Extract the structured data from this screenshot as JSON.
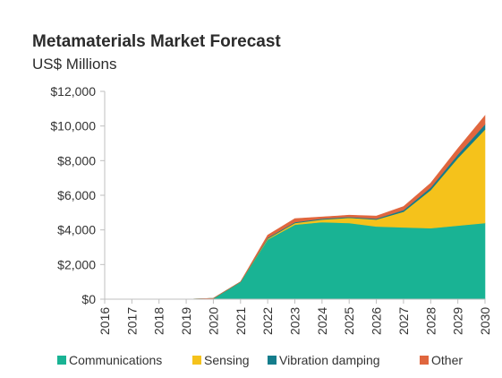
{
  "chart_data": {
    "type": "area",
    "stacked": true,
    "title": "Metamaterials Market Forecast",
    "subtitle": "US$ Millions",
    "xlabel": "",
    "ylabel": "",
    "x": [
      "2016",
      "2017",
      "2018",
      "2019",
      "2020",
      "2021",
      "2022",
      "2023",
      "2024",
      "2025",
      "2026",
      "2027",
      "2028",
      "2029",
      "2030"
    ],
    "ylim": [
      0,
      12000
    ],
    "yticks": [
      "$0",
      "$2,000",
      "$4,000",
      "$6,000",
      "$8,000",
      "$10,000",
      "$12,000"
    ],
    "grid": false,
    "legend_position": "bottom",
    "series": [
      {
        "name": "Communications",
        "color": "#19b394",
        "values": [
          0,
          0,
          0,
          0,
          50,
          1000,
          3450,
          4300,
          4450,
          4400,
          4200,
          4150,
          4100,
          4250,
          4400
        ]
      },
      {
        "name": "Sensing",
        "color": "#f5c21b",
        "values": [
          0,
          0,
          0,
          0,
          0,
          0,
          50,
          100,
          150,
          300,
          400,
          900,
          2200,
          3900,
          5400
        ]
      },
      {
        "name": "Vibration damping",
        "color": "#147d8c",
        "values": [
          0,
          0,
          0,
          0,
          0,
          0,
          50,
          50,
          50,
          50,
          50,
          100,
          150,
          200,
          300
        ]
      },
      {
        "name": "Other",
        "color": "#e0663e",
        "values": [
          0,
          0,
          0,
          0,
          0,
          0,
          150,
          200,
          100,
          100,
          150,
          200,
          250,
          350,
          500
        ]
      }
    ]
  }
}
